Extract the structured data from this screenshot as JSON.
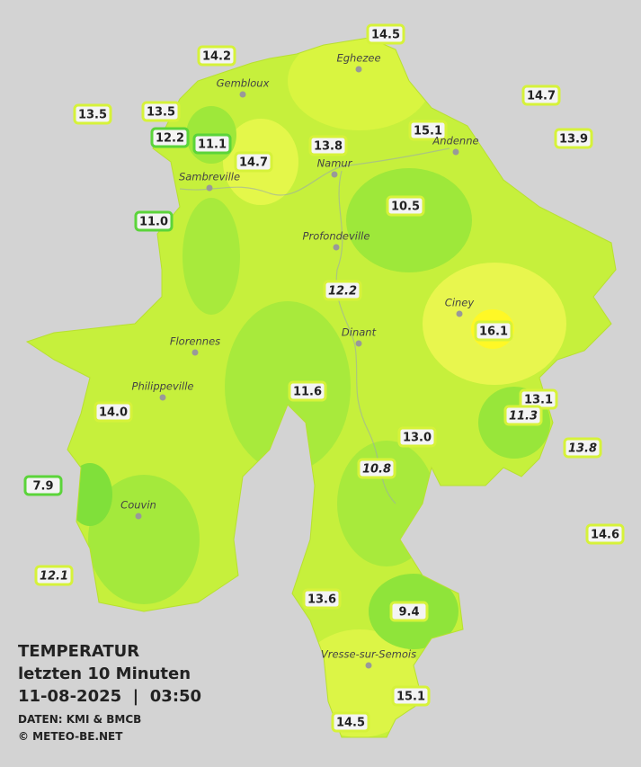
{
  "title": "TEMPERATUR",
  "subtitle": "letzten 10 Minuten",
  "datetime": "11-08-2025  |  03:50",
  "source": "DATEN: KMI & BMCB",
  "copyright": "© METEO-BE.NET",
  "towns": [
    "Eghezee",
    "Gembloux",
    "Andenne",
    "Namur",
    "Sambreville",
    "Profondeville",
    "Ciney",
    "Dinant",
    "Florennes",
    "Philippeville",
    "Couvin",
    "Vresse-sur-Semois"
  ],
  "stations": [
    {
      "label": "14.5"
    },
    {
      "label": "14.2"
    },
    {
      "label": "14.7"
    },
    {
      "label": "13.5"
    },
    {
      "label": "13.5"
    },
    {
      "label": "15.1"
    },
    {
      "label": "13.9"
    },
    {
      "label": "12.2"
    },
    {
      "label": "11.1"
    },
    {
      "label": "13.8"
    },
    {
      "label": "14.7"
    },
    {
      "label": "10.5"
    },
    {
      "label": "11.0"
    },
    {
      "label": "12.2",
      "italic": true
    },
    {
      "label": "16.1"
    },
    {
      "label": "11.6"
    },
    {
      "label": "13.1"
    },
    {
      "label": "14.0"
    },
    {
      "label": "11.3",
      "italic": true
    },
    {
      "label": "13.0"
    },
    {
      "label": "13.8",
      "italic": true
    },
    {
      "label": "10.8",
      "italic": true
    },
    {
      "label": "7.9"
    },
    {
      "label": "14.6"
    },
    {
      "label": "12.1",
      "italic": true
    },
    {
      "label": "13.6"
    },
    {
      "label": "9.4"
    },
    {
      "label": "15.1"
    },
    {
      "label": "14.5"
    }
  ]
}
